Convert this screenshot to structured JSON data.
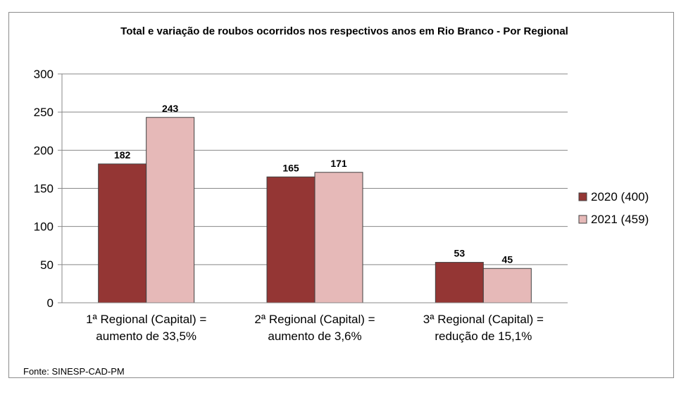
{
  "chart_data": {
    "type": "bar",
    "title": "Total e variação de roubos ocorridos nos respectivos anos em Rio Branco - Por Regional",
    "categories": [
      [
        "1ª Regional (Capital) =",
        "aumento de 33,5%"
      ],
      [
        "2ª Regional (Capital) =",
        "aumento de 3,6%"
      ],
      [
        "3ª Regional (Capital) =",
        "redução de 15,1%"
      ]
    ],
    "series": [
      {
        "name": "2020 (400)",
        "color": "#943634",
        "values": [
          182,
          165,
          53
        ]
      },
      {
        "name": "2021 (459)",
        "color": "#e6b9b8",
        "values": [
          243,
          171,
          45
        ]
      }
    ],
    "ylim": [
      0,
      300
    ],
    "yticks": [
      0,
      50,
      100,
      150,
      200,
      250,
      300
    ],
    "grid": true,
    "legend": "right",
    "xlabel": "",
    "ylabel": ""
  },
  "source": "Fonte: SINESP-CAD-PM"
}
